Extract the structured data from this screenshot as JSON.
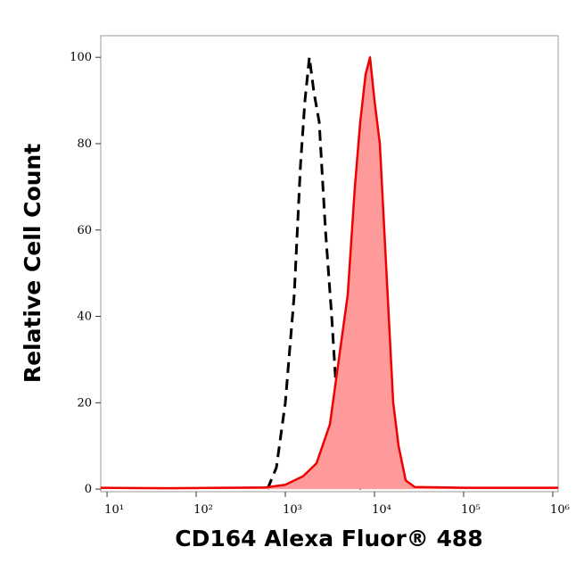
{
  "chart_data": {
    "type": "area",
    "xlabel": "CD164 Alexa Fluor® 488",
    "ylabel": "Relative Cell Count",
    "xscale": "log",
    "xlim": [
      8.5,
      1150000
    ],
    "ylim": [
      -0.6,
      105
    ],
    "xticks": [
      {
        "value": 10,
        "label": "10¹"
      },
      {
        "value": 100,
        "label": "10²"
      },
      {
        "value": 1000,
        "label": "10³"
      },
      {
        "value": 10000,
        "label": "10⁴"
      },
      {
        "value": 100000,
        "label": "10⁵"
      },
      {
        "value": 1000000,
        "label": "10⁶"
      }
    ],
    "yticks": [
      0,
      20,
      40,
      60,
      80,
      100
    ],
    "series": [
      {
        "color": "#000000",
        "dashed": true,
        "fill": null,
        "x": [
          631,
          794,
          1000,
          1259,
          1479,
          1660,
          1862,
          2089,
          2399,
          2818,
          3311,
          3802,
          4467,
          5623,
          7079
        ],
        "values": [
          0,
          5,
          20,
          45,
          75,
          90,
          100,
          92,
          85,
          60,
          40,
          20,
          8,
          3,
          0
        ]
      },
      {
        "color": "#ee0000",
        "dashed": false,
        "fill": "#ff9a9a",
        "x": [
          8.5,
          50,
          200,
          600,
          1000,
          1585,
          2239,
          3162,
          3981,
          5012,
          6026,
          6918,
          7943,
          8913,
          10000,
          11482,
          12882,
          14454,
          16218,
          18620,
          22387,
          28184,
          100000,
          1150000
        ],
        "values": [
          0.3,
          0.2,
          0.3,
          0.4,
          1,
          3,
          6,
          15,
          30,
          45,
          70,
          85,
          96,
          100,
          90,
          80,
          60,
          40,
          20,
          10,
          2,
          0.5,
          0.3,
          0.3
        ]
      }
    ]
  }
}
